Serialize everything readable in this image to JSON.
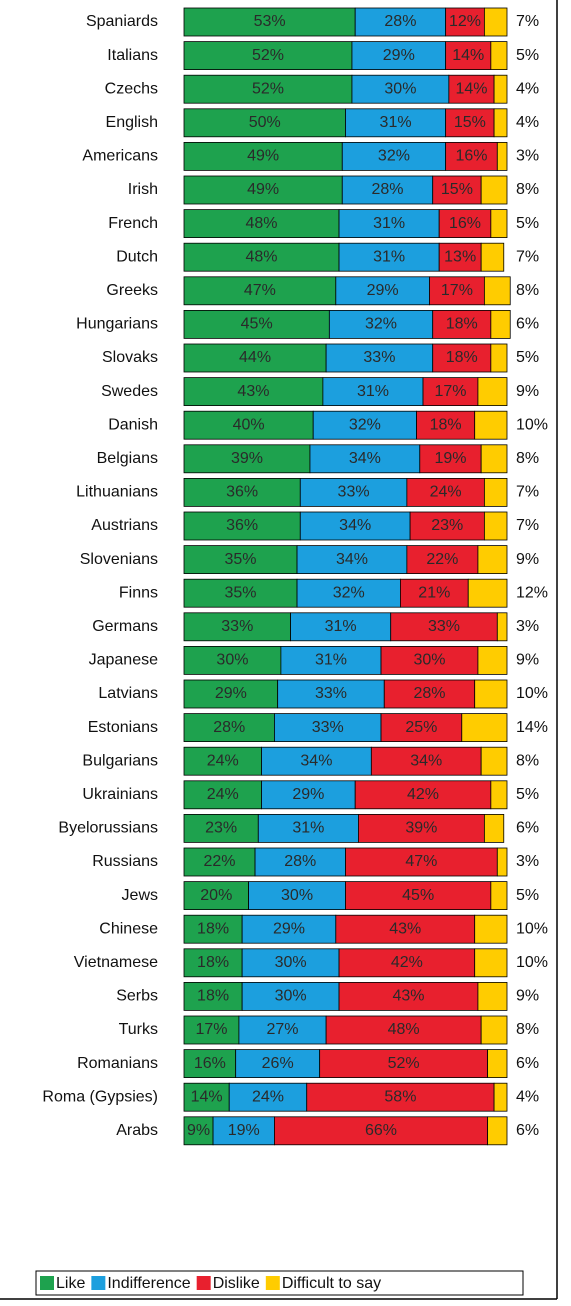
{
  "chart_data": {
    "type": "stacked-barh",
    "categories": [
      "Spaniards",
      "Italians",
      "Czechs",
      "English",
      "Americans",
      "Irish",
      "French",
      "Dutch",
      "Greeks",
      "Hungarians",
      "Slovaks",
      "Swedes",
      "Danish",
      "Belgians",
      "Lithuanians",
      "Austrians",
      "Slovenians",
      "Finns",
      "Germans",
      "Japanese",
      "Latvians",
      "Estonians",
      "Bulgarians",
      "Ukrainians",
      "Byelorussians",
      "Russians",
      "Jews",
      "Chinese",
      "Vietnamese",
      "Serbs",
      "Turks",
      "Romanians",
      "Roma (Gypsies)",
      "Arabs"
    ],
    "xlim": [
      0,
      100
    ],
    "legend": "bottom",
    "series": [
      {
        "name": "Like",
        "color": "#1ea24e",
        "values": [
          53,
          52,
          52,
          50,
          49,
          49,
          48,
          48,
          47,
          45,
          44,
          43,
          40,
          39,
          36,
          36,
          35,
          35,
          33,
          30,
          29,
          28,
          24,
          24,
          23,
          22,
          20,
          18,
          18,
          18,
          17,
          16,
          14,
          9
        ],
        "value_labels": [
          "53%",
          "52%",
          "52%",
          "50%",
          "49%",
          "49%",
          "48%",
          "48%",
          "47%",
          "45%",
          "44%",
          "43%",
          "40%",
          "39%",
          "36%",
          "36%",
          "35%",
          "35%",
          "33%",
          "30%",
          "29%",
          "28%",
          "24%",
          "24%",
          "23%",
          "22%",
          "20%",
          "18%",
          "18%",
          "18%",
          "17%",
          "16%",
          "14%",
          "9%"
        ]
      },
      {
        "name": "Indifference",
        "color": "#1c9fde",
        "values": [
          28,
          29,
          30,
          31,
          32,
          28,
          31,
          31,
          29,
          32,
          33,
          31,
          32,
          34,
          33,
          34,
          34,
          32,
          31,
          31,
          33,
          33,
          34,
          29,
          31,
          28,
          30,
          29,
          30,
          30,
          27,
          26,
          24,
          19
        ],
        "value_labels": [
          "28%",
          "29%",
          "30%",
          "31%",
          "32%",
          "28%",
          "31%",
          "31%",
          "29%",
          "32%",
          "33%",
          "31%",
          "32%",
          "34%",
          "33%",
          "34%",
          "34%",
          "32%",
          "31%",
          "31%",
          "33%",
          "33%",
          "34%",
          "29%",
          "31%",
          "28%",
          "30%",
          "29%",
          "30%",
          "30%",
          "27%",
          "26%",
          "24%",
          "19%"
        ]
      },
      {
        "name": "Dislike",
        "color": "#e8202e",
        "values": [
          12,
          14,
          14,
          15,
          16,
          15,
          16,
          13,
          17,
          18,
          18,
          17,
          18,
          19,
          24,
          23,
          22,
          21,
          33,
          30,
          28,
          25,
          34,
          42,
          39,
          47,
          45,
          43,
          42,
          43,
          48,
          52,
          58,
          66
        ],
        "value_labels": [
          "12%",
          "14%",
          "14%",
          "15%",
          "16%",
          "15%",
          "16%",
          "13%",
          "17%",
          "18%",
          "18%",
          "17%",
          "18%",
          "19%",
          "24%",
          "23%",
          "22%",
          "21%",
          "33%",
          "30%",
          "28%",
          "25%",
          "34%",
          "42%",
          "39%",
          "47%",
          "45%",
          "43%",
          "42%",
          "43%",
          "48%",
          "52%",
          "58%",
          "66%"
        ]
      },
      {
        "name": "Difficult to say",
        "color": "#ffcc00",
        "values": [
          7,
          5,
          4,
          4,
          3,
          8,
          5,
          7,
          8,
          6,
          5,
          9,
          10,
          8,
          7,
          7,
          9,
          12,
          3,
          9,
          10,
          14,
          8,
          5,
          6,
          3,
          5,
          10,
          10,
          9,
          8,
          6,
          4,
          6
        ],
        "value_labels": [
          "7%",
          "5%",
          "4%",
          "4%",
          "3%",
          "8%",
          "5%",
          "7%",
          "8%",
          "6%",
          "5%",
          "9%",
          "10%",
          "8%",
          "7%",
          "7%",
          "9%",
          "12%",
          "3%",
          "9%",
          "10%",
          "14%",
          "8%",
          "5%",
          "6%",
          "3%",
          "5%",
          "10%",
          "10%",
          "9%",
          "8%",
          "6%",
          "4%",
          "6%"
        ]
      }
    ]
  }
}
